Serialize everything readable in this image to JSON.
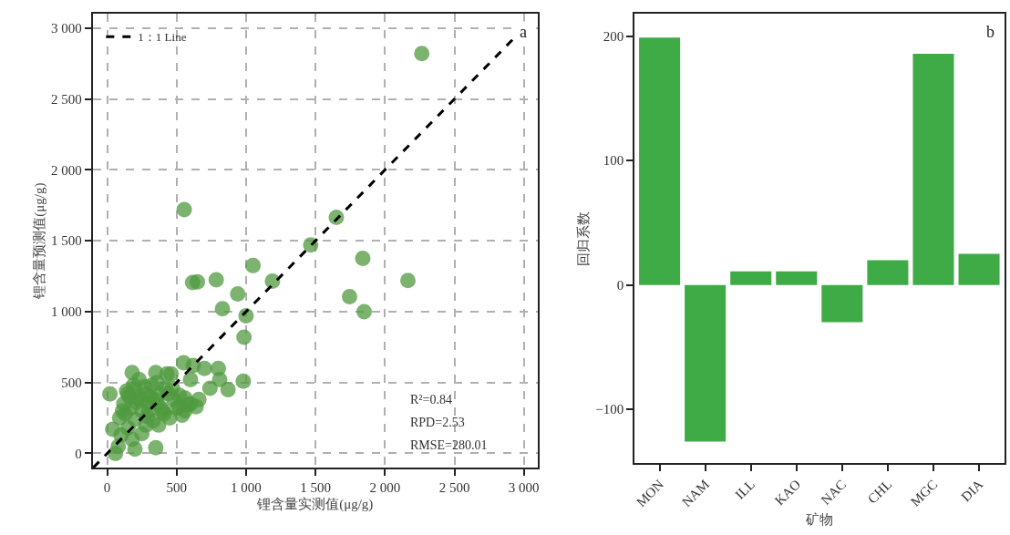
{
  "chart_data": [
    {
      "type": "scatter",
      "xlabel": "锂含量实测值(μg/g)",
      "ylabel": "锂含量预测值(μg/g)",
      "xlim": [
        -105,
        3100
      ],
      "ylim": [
        -100,
        3100
      ],
      "xticks": [
        0,
        500,
        {
          "value": 1000,
          "label": "1 000"
        },
        {
          "value": 1500,
          "label": "1 500"
        },
        {
          "value": 2000,
          "label": "2 000"
        },
        {
          "value": 2500,
          "label": "2 500"
        },
        {
          "value": 3000,
          "label": "3 000"
        }
      ],
      "yticks": [
        0,
        500,
        {
          "value": 1000,
          "label": "1 000"
        },
        {
          "value": 1500,
          "label": "1 500"
        },
        {
          "value": 2000,
          "label": "2 000"
        },
        {
          "value": 2500,
          "label": "2 500"
        },
        {
          "value": 3000,
          "label": "3 000"
        }
      ],
      "grid": true,
      "legend": "top left",
      "annotations": [
        "a",
        "R²=0.84",
        "RPD=2.53",
        "RMSE=280.01"
      ],
      "series": [
        {
          "type": "scatter",
          "color": "#4f9a3f",
          "marker": "circle",
          "x": [
            2265,
            555,
            1650,
            1465,
            1840,
            2165,
            1745,
            1850,
            1050,
            1190,
            615,
            650,
            785,
            940,
            830,
            1000,
            985,
            980,
            870,
            800,
            700,
            620,
            550,
            460,
            350,
            180,
            150,
            20,
            40,
            60,
            100,
            180,
            250,
            350,
            80,
            200,
            300,
            120,
            160,
            200,
            240,
            280,
            320,
            360,
            400,
            440,
            480,
            520,
            560,
            600,
            130,
            170,
            210,
            250,
            290,
            330,
            370,
            410,
            450,
            230,
            270,
            310,
            190,
            140,
            300,
            340,
            380,
            420,
            500,
            540,
            580,
            640,
            220,
            110,
            90,
            360,
            430,
            470,
            520,
            560,
            600,
            660,
            740,
            810,
            280,
            200,
            150,
            390
          ],
          "values": [
            2820,
            1720,
            1665,
            1470,
            1375,
            1220,
            1105,
            1000,
            1325,
            1215,
            1205,
            1210,
            1225,
            1125,
            1020,
            970,
            820,
            510,
            450,
            600,
            600,
            620,
            640,
            560,
            570,
            570,
            420,
            420,
            170,
            0,
            130,
            100,
            140,
            40,
            50,
            30,
            300,
            350,
            400,
            450,
            380,
            420,
            480,
            350,
            300,
            420,
            380,
            330,
            300,
            350,
            280,
            320,
            360,
            300,
            260,
            230,
            200,
            280,
            250,
            520,
            470,
            400,
            480,
            440,
            360,
            380,
            420,
            460,
            320,
            270,
            340,
            330,
            390,
            300,
            250,
            500,
            560,
            460,
            410,
            390,
            520,
            380,
            460,
            520,
            200,
            240,
            180,
            320
          ]
        },
        {
          "type": "line",
          "name": "1：1 Line",
          "color": "#000000",
          "line_style": "dashed",
          "marker": "none",
          "x": [
            -100,
            2950
          ],
          "values": [
            -100,
            2950
          ]
        }
      ]
    },
    {
      "type": "bar",
      "xlabel": "矿物",
      "ylabel": "回归系数",
      "color": "#3fab47",
      "categories": [
        "MON",
        "NAM",
        "ILL",
        "KAO",
        "NAC",
        "CHL",
        "MGC",
        "DIA"
      ],
      "values": [
        199,
        -126,
        11,
        11,
        -30,
        20,
        186,
        25
      ],
      "ylim": [
        -143,
        218
      ],
      "yticks": [
        {
          "value": -100,
          "label": "−100"
        },
        0,
        100,
        200
      ],
      "grid": false,
      "annotations": [
        "b"
      ]
    }
  ]
}
